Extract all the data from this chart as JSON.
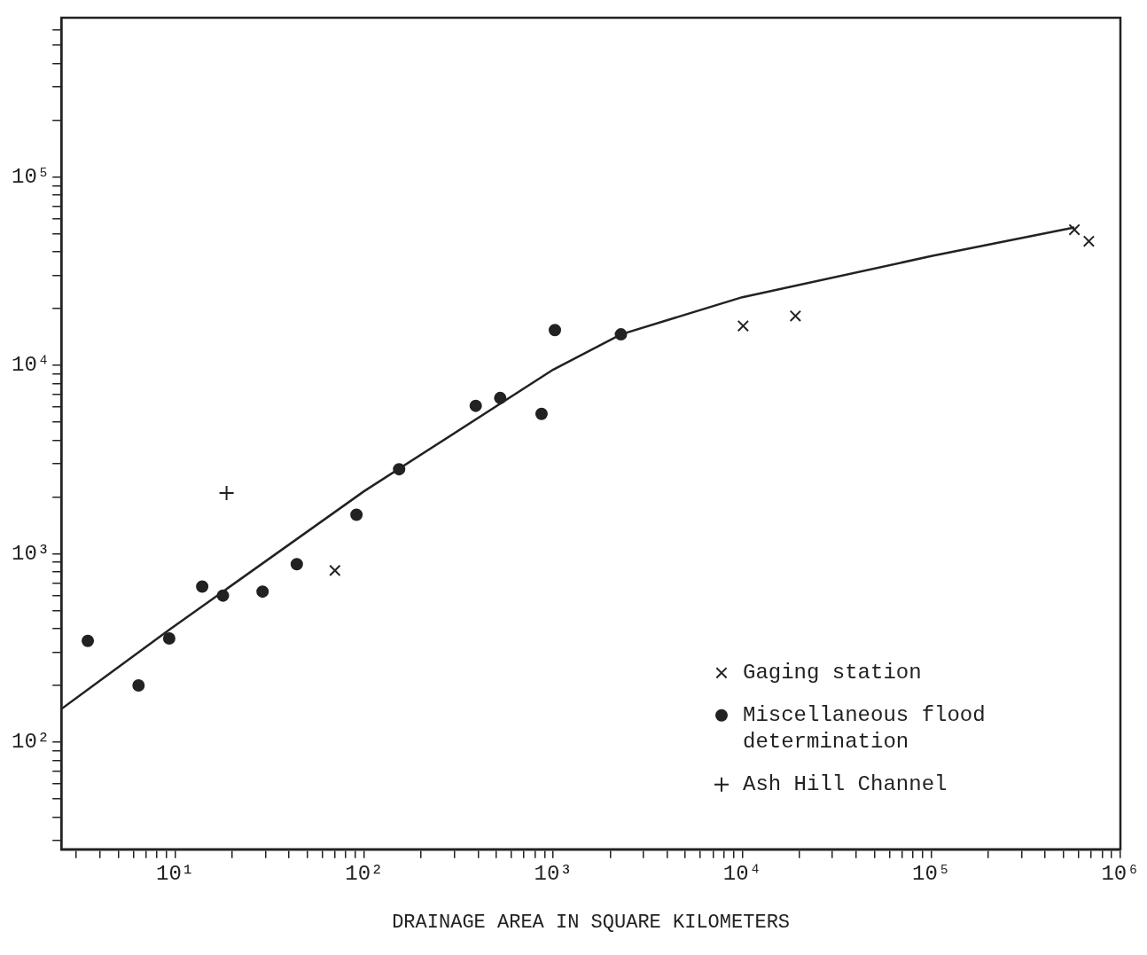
{
  "chart_data": {
    "type": "scatter",
    "xlabel": "DRAINAGE AREA IN SQUARE KILOMETERS",
    "log": "xy",
    "grid": false,
    "legend": "bottom right",
    "xlim": [
      2.5,
      1000000
    ],
    "ylim": [
      27,
      700000
    ],
    "xticks": [
      {
        "value": 3,
        "label": null
      },
      {
        "value": 4,
        "label": null
      },
      {
        "value": 5,
        "label": null
      },
      {
        "value": 6,
        "label": null
      },
      {
        "value": 7,
        "label": null
      },
      {
        "value": 8,
        "label": null
      },
      {
        "value": 9,
        "label": null
      },
      {
        "value": 10,
        "label": "10¹"
      },
      {
        "value": 20,
        "label": null
      },
      {
        "value": 30,
        "label": null
      },
      {
        "value": 40,
        "label": null
      },
      {
        "value": 50,
        "label": null
      },
      {
        "value": 60,
        "label": null
      },
      {
        "value": 70,
        "label": null
      },
      {
        "value": 80,
        "label": null
      },
      {
        "value": 90,
        "label": null
      },
      {
        "value": 100,
        "label": "10²"
      },
      {
        "value": 200,
        "label": null
      },
      {
        "value": 300,
        "label": null
      },
      {
        "value": 400,
        "label": null
      },
      {
        "value": 500,
        "label": null
      },
      {
        "value": 600,
        "label": null
      },
      {
        "value": 700,
        "label": null
      },
      {
        "value": 800,
        "label": null
      },
      {
        "value": 900,
        "label": null
      },
      {
        "value": 1000,
        "label": "10³"
      },
      {
        "value": 2000,
        "label": null
      },
      {
        "value": 3000,
        "label": null
      },
      {
        "value": 4000,
        "label": null
      },
      {
        "value": 5000,
        "label": null
      },
      {
        "value": 6000,
        "label": null
      },
      {
        "value": 7000,
        "label": null
      },
      {
        "value": 8000,
        "label": null
      },
      {
        "value": 9000,
        "label": null
      },
      {
        "value": 10000,
        "label": "10⁴"
      },
      {
        "value": 20000,
        "label": null
      },
      {
        "value": 30000,
        "label": null
      },
      {
        "value": 40000,
        "label": null
      },
      {
        "value": 50000,
        "label": null
      },
      {
        "value": 60000,
        "label": null
      },
      {
        "value": 70000,
        "label": null
      },
      {
        "value": 80000,
        "label": null
      },
      {
        "value": 90000,
        "label": null
      },
      {
        "value": 100000,
        "label": "10⁵"
      },
      {
        "value": 200000,
        "label": null
      },
      {
        "value": 300000,
        "label": null
      },
      {
        "value": 400000,
        "label": null
      },
      {
        "value": 500000,
        "label": null
      },
      {
        "value": 600000,
        "label": null
      },
      {
        "value": 700000,
        "label": null
      },
      {
        "value": 800000,
        "label": null
      },
      {
        "value": 900000,
        "label": null
      },
      {
        "value": 1000000,
        "label": "10⁶"
      }
    ],
    "yticks": [
      {
        "value": 30,
        "label": null
      },
      {
        "value": 40,
        "label": null
      },
      {
        "value": 50,
        "label": null
      },
      {
        "value": 60,
        "label": null
      },
      {
        "value": 70,
        "label": null
      },
      {
        "value": 80,
        "label": null
      },
      {
        "value": 90,
        "label": null
      },
      {
        "value": 100,
        "label": "10²"
      },
      {
        "value": 200,
        "label": null
      },
      {
        "value": 300,
        "label": null
      },
      {
        "value": 400,
        "label": null
      },
      {
        "value": 500,
        "label": null
      },
      {
        "value": 600,
        "label": null
      },
      {
        "value": 700,
        "label": null
      },
      {
        "value": 800,
        "label": null
      },
      {
        "value": 900,
        "label": null
      },
      {
        "value": 1000,
        "label": "10³"
      },
      {
        "value": 2000,
        "label": null
      },
      {
        "value": 3000,
        "label": null
      },
      {
        "value": 4000,
        "label": null
      },
      {
        "value": 5000,
        "label": null
      },
      {
        "value": 6000,
        "label": null
      },
      {
        "value": 7000,
        "label": null
      },
      {
        "value": 8000,
        "label": null
      },
      {
        "value": 9000,
        "label": null
      },
      {
        "value": 10000,
        "label": "10⁴"
      },
      {
        "value": 20000,
        "label": null
      },
      {
        "value": 30000,
        "label": null
      },
      {
        "value": 40000,
        "label": null
      },
      {
        "value": 50000,
        "label": null
      },
      {
        "value": 60000,
        "label": null
      },
      {
        "value": 70000,
        "label": null
      },
      {
        "value": 80000,
        "label": null
      },
      {
        "value": 90000,
        "label": null
      },
      {
        "value": 100000,
        "label": "10⁵"
      },
      {
        "value": 200000,
        "label": null
      },
      {
        "value": 300000,
        "label": null
      },
      {
        "value": 400000,
        "label": null
      },
      {
        "value": 500000,
        "label": null
      },
      {
        "value": 600000,
        "label": null
      }
    ],
    "series": [
      {
        "type": "line",
        "color": "#222222",
        "marker": "none",
        "line_style": "solid",
        "x": [
          2.5,
          9.3,
          100,
          1000,
          2280,
          10000,
          100000,
          571000
        ],
        "values": [
          150,
          395,
          2150,
          9500,
          14600,
          23000,
          38000,
          54000
        ]
      },
      {
        "name": "Gaging station",
        "color": "#222222",
        "marker": "x",
        "x": [
          70,
          10100,
          19100,
          571000,
          681000
        ],
        "values": [
          815,
          16200,
          18300,
          52500,
          45600
        ]
      },
      {
        "name": "Miscellaneous flood determination",
        "color": "#222222",
        "marker": "circle",
        "x": [
          3.45,
          6.4,
          9.3,
          13.9,
          17.9,
          29,
          44,
          91,
          153,
          389,
          524,
          867,
          1020,
          2280
        ],
        "values": [
          345,
          200,
          355,
          670,
          600,
          630,
          880,
          1610,
          2810,
          6100,
          6710,
          5530,
          15400,
          14600
        ]
      },
      {
        "name": "Ash Hill Channel",
        "color": "#222222",
        "marker": "cross",
        "x": [
          18.7
        ],
        "values": [
          2100
        ]
      }
    ]
  }
}
